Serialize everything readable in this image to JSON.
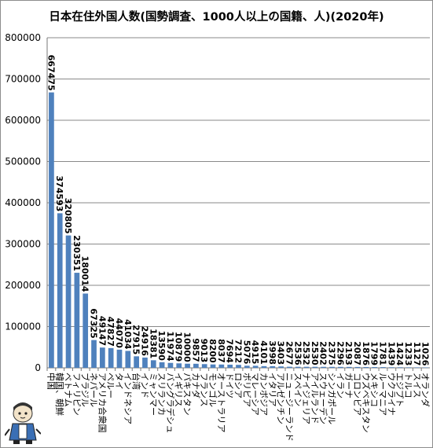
{
  "chart_data": {
    "type": "bar",
    "title": "日本在住外国人数(国勢調査、1000人以上の国籍、人)(2020年)",
    "ylim": [
      0,
      800000
    ],
    "yticks": [
      "0",
      "100000",
      "200000",
      "300000",
      "400000",
      "500000",
      "600000",
      "700000",
      "800000"
    ],
    "grid": true,
    "bar_color": "#4f81bd",
    "categories": [
      "中国",
      "韓国、朝鮮",
      "ベトナム",
      "フィリピン",
      "ブラジル",
      "ネパール",
      "アメリカ合衆国",
      "ペルー",
      "タイ",
      "インドネシア",
      "台湾",
      "インド",
      "ミャンマー",
      "スリランカ",
      "バングラデシュ",
      "イギリス",
      "パキスタン",
      "カナダ",
      "フランス",
      "モンゴル",
      "オーストラリア",
      "ドイツ",
      "ロシア",
      "ボリビア",
      "マレーシア",
      "カンボジア",
      "イタリア",
      "アルゼンチン",
      "ニュージーランド",
      "スペイン",
      "ナイジェリア",
      "アイルランド",
      "スウェーデン",
      "シンガポール",
      "イラン",
      "ガーナ",
      "コロンビア",
      "ウズベキスタン",
      "メキシコ",
      "ルーマニア",
      "ウクライナ",
      "エジプト",
      "トルコ",
      "スイス",
      "オランダ"
    ],
    "values": [
      667475,
      374593,
      320805,
      230351,
      180014,
      67325,
      49147,
      47827,
      44070,
      41034,
      27915,
      24916,
      18381,
      13590,
      11974,
      10879,
      10000,
      9857,
      9013,
      8200,
      8037,
      7694,
      7212,
      5076,
      4915,
      4101,
      3998,
      3403,
      2677,
      2536,
      2532,
      2530,
      2402,
      2375,
      2296,
      2193,
      2087,
      1876,
      1799,
      1781,
      1439,
      1424,
      1233,
      1127,
      1026
    ],
    "data_labels": [
      "667475",
      "374593",
      "320805",
      "230351",
      "180014",
      "67325",
      "49147",
      "47827",
      "44070",
      "41034",
      "27915",
      "24916",
      "18381",
      "13590",
      "11974",
      "10879",
      "10000",
      "9857",
      "9013",
      "8200",
      "8037",
      "7694",
      "7212",
      "5076",
      "4915",
      "4101",
      "3998",
      "3403",
      "2677",
      "2536",
      "2532",
      "2530",
      "2402",
      "2375",
      "2296",
      "2193",
      "2087",
      "1876",
      "1799",
      "1781",
      "1439",
      "1424",
      "1233",
      "1127",
      "1026"
    ]
  },
  "mascot": {
    "icon": "mascot-character-icon"
  }
}
